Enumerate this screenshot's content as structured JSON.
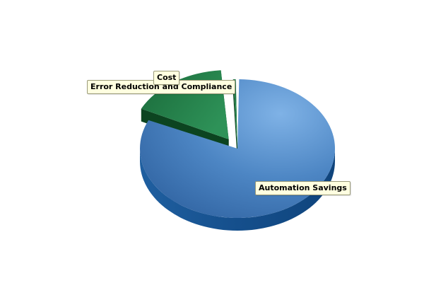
{
  "chart_data": {
    "type": "pie",
    "title": "",
    "categories": [
      "Automation Savings",
      "Error Reduction and Compliance",
      "Cost"
    ],
    "values": [
      82,
      17,
      1
    ],
    "colors": {
      "Automation Savings": "#4a86c6",
      "Error Reduction and Compliance": "#1f7a45",
      "Cost": "#1f7a45"
    },
    "three_d": true,
    "exploded": "Error Reduction and Compliance",
    "legend": "none"
  }
}
